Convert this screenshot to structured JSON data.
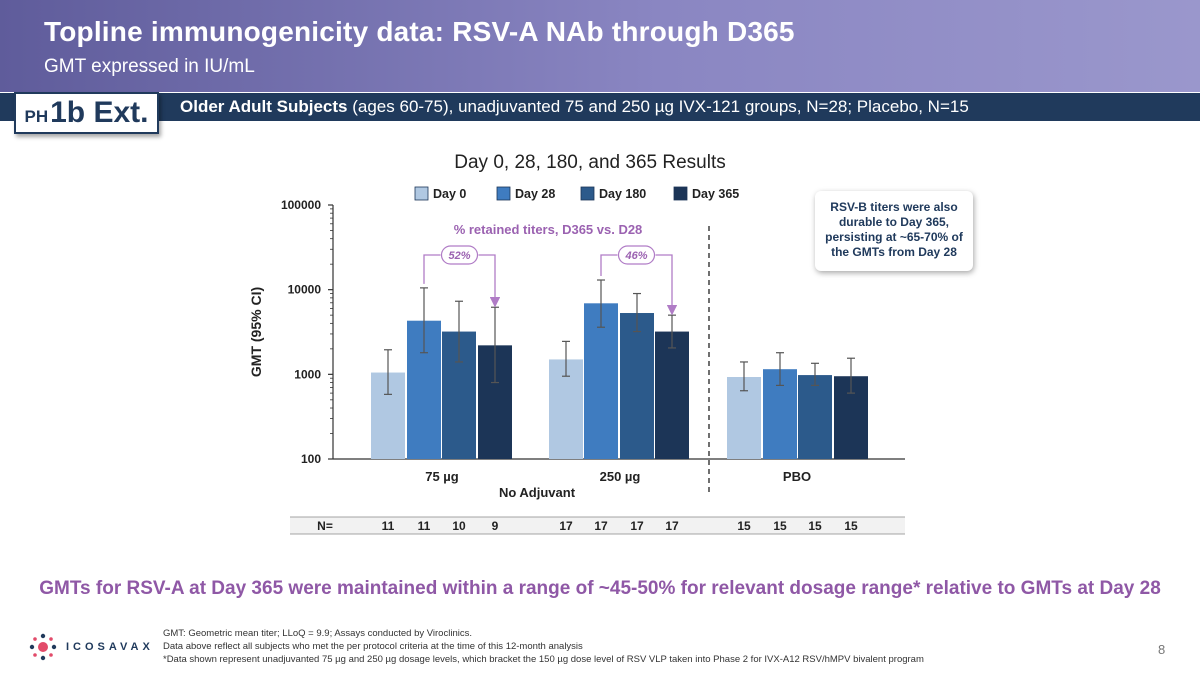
{
  "header": {
    "title": "Topline immunogenicity data: RSV-A NAb through D365",
    "subtitle": "GMT expressed in IU/mL"
  },
  "badge": {
    "prefix": "PH",
    "label": "1b Ext."
  },
  "subbar": {
    "bold": "Older Adult Subjects",
    "rest": " (ages 60-75), unadjuvanted 75 and 250 µg IVX-121 groups, N=28;  Placebo, N=15"
  },
  "chart_data": {
    "type": "bar",
    "title": "Day 0, 28, 180, and 365 Results",
    "ylabel": "GMT (95% CI)",
    "xlabel": "No Adjuvant",
    "yscale": "log",
    "ylim": [
      100,
      100000
    ],
    "yticks": [
      "100000",
      "10000",
      "1000",
      "100"
    ],
    "categories": [
      "75 µg",
      "250 µg",
      "PBO"
    ],
    "series": [
      {
        "name": "Day 0",
        "color": "#b0c8e2",
        "values": [
          1050,
          1500,
          930
        ],
        "ci_low": [
          580,
          950,
          640
        ],
        "ci_high": [
          1950,
          2450,
          1400
        ]
      },
      {
        "name": "Day 28",
        "color": "#3f7cc0",
        "values": [
          4300,
          6900,
          1150
        ],
        "ci_low": [
          1800,
          3600,
          740
        ],
        "ci_high": [
          10500,
          13000,
          1800
        ]
      },
      {
        "name": "Day 180",
        "color": "#2c5a8b",
        "values": [
          3200,
          5300,
          980
        ],
        "ci_low": [
          1400,
          3200,
          740
        ],
        "ci_high": [
          7300,
          9000,
          1350
        ]
      },
      {
        "name": "Day 365",
        "color": "#1c3557",
        "values": [
          2200,
          3200,
          950
        ],
        "ci_low": [
          800,
          2050,
          600
        ],
        "ci_high": [
          6200,
          5000,
          1550
        ]
      }
    ],
    "retained_label": "% retained titers, D365 vs. D28",
    "retained": [
      "52%",
      "46%"
    ],
    "n_label": "N=",
    "n_values": [
      [
        "11",
        "11",
        "10",
        "9"
      ],
      [
        "17",
        "17",
        "17",
        "17"
      ],
      [
        "15",
        "15",
        "15",
        "15"
      ]
    ]
  },
  "callout": "RSV-B titers were also durable to Day 365, persisting at ~65-70% of the GMTs from Day 28",
  "conclusion": "GMTs for RSV-A at Day 365 were maintained within a range of ~45-50% for relevant dosage range* relative to GMTs at Day 28",
  "footnotes": [
    "GMT: Geometric mean titer; LLoQ = 9.9; Assays conducted by Viroclinics.",
    "Data above reflect all subjects who met the per protocol criteria at the time of this 12-month analysis",
    "*Data shown represent unadjuvanted 75 µg and 250 µg dosage levels, which bracket the 150 µg dose level of RSV VLP taken into Phase 2 for IVX-A12 RSV/hMPV bivalent program"
  ],
  "logo": "ICOSAVAX",
  "page_number": "8",
  "colors": {
    "accent": "#8f58a6",
    "navy": "#203a5c"
  }
}
